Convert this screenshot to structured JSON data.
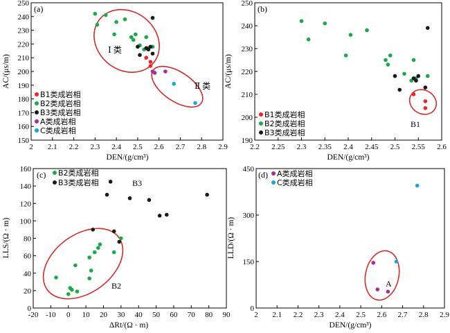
{
  "colors": {
    "B1": "#e8262b",
    "B2": "#1aaa4b",
    "B3": "#1a1a1a",
    "A": "#a0309a",
    "C": "#1ba6d8",
    "ellipse": "#d42a2a"
  },
  "chart_data": [
    {
      "type": "scatter",
      "panel": "(a)",
      "xlabel": "DEN/(g/cm³)",
      "ylabel": "AC/(μs/m)",
      "xlim": [
        2.0,
        2.9
      ],
      "ylim": [
        150,
        250
      ],
      "xticks": [
        "2",
        "2.1",
        "2.2",
        "2.3",
        "2.4",
        "2.5",
        "2.6",
        "2.7",
        "2.8",
        "2.9"
      ],
      "yticks": [
        "150",
        "160",
        "170",
        "180",
        "190",
        "200",
        "210",
        "220",
        "230",
        "240",
        "250"
      ],
      "legend": {
        "position": "bottom-left",
        "entries": [
          "B1类成岩相",
          "B2类成岩相",
          "B3类成岩相",
          "A类成岩相",
          "C类成岩相"
        ]
      },
      "series": [
        {
          "name": "B1类成岩相",
          "color_key": "B1",
          "points": [
            [
              2.54,
              210
            ],
            [
              2.56,
              207
            ],
            [
              2.56,
              204
            ]
          ]
        },
        {
          "name": "B2类成岩相",
          "color_key": "B2",
          "points": [
            [
              2.3,
              242
            ],
            [
              2.31,
              234
            ],
            [
              2.35,
              241
            ],
            [
              2.39,
              227
            ],
            [
              2.4,
              236
            ],
            [
              2.44,
              238
            ],
            [
              2.47,
              225
            ],
            [
              2.48,
              223
            ],
            [
              2.49,
              227
            ],
            [
              2.51,
              219
            ],
            [
              2.53,
              216
            ],
            [
              2.54,
              225
            ],
            [
              2.55,
              217
            ],
            [
              2.57,
              218
            ]
          ]
        },
        {
          "name": "B3类成岩相",
          "color_key": "B3",
          "points": [
            [
              2.5,
              218
            ],
            [
              2.51,
              212
            ],
            [
              2.54,
              217
            ],
            [
              2.55,
              216
            ],
            [
              2.56,
              218
            ],
            [
              2.57,
              213
            ],
            [
              2.57,
              239
            ]
          ]
        },
        {
          "name": "A类成岩相",
          "color_key": "A",
          "points": [
            [
              2.57,
              200
            ],
            [
              2.58,
              199
            ],
            [
              2.63,
              200
            ]
          ]
        },
        {
          "name": "C类成岩相",
          "color_key": "C",
          "points": [
            [
              2.67,
              191
            ],
            [
              2.77,
              177
            ]
          ]
        }
      ],
      "annotations": [
        "Ⅰ 类",
        "Ⅱ 类"
      ]
    },
    {
      "type": "scatter",
      "panel": "(b)",
      "xlabel": "DEN/(g/cm³)",
      "ylabel": "AC/(μs/m)",
      "xlim": [
        2.2,
        2.6
      ],
      "ylim": [
        190,
        250
      ],
      "xticks": [
        "2.2",
        "2.25",
        "2.3",
        "2.35",
        "2.4",
        "2.45",
        "2.5",
        "2.55",
        "2.6"
      ],
      "yticks": [
        "190",
        "200",
        "210",
        "220",
        "230",
        "240",
        "250"
      ],
      "legend": {
        "position": "bottom-left",
        "entries": [
          "B1类成岩相",
          "B2类成岩相",
          "B3类成岩相"
        ]
      },
      "series": [
        {
          "name": "B1类成岩相",
          "color_key": "B1",
          "points": [
            [
              2.54,
              210
            ],
            [
              2.565,
              207
            ],
            [
              2.565,
              204
            ]
          ]
        },
        {
          "name": "B2类成岩相",
          "color_key": "B2",
          "points": [
            [
              2.3,
              242
            ],
            [
              2.315,
              234
            ],
            [
              2.35,
              241
            ],
            [
              2.395,
              227
            ],
            [
              2.405,
              236
            ],
            [
              2.44,
              238
            ],
            [
              2.48,
              225
            ],
            [
              2.485,
              223
            ],
            [
              2.49,
              227
            ],
            [
              2.52,
              219
            ],
            [
              2.535,
              216
            ],
            [
              2.54,
              225
            ],
            [
              2.545,
              217
            ],
            [
              2.57,
              218
            ]
          ]
        },
        {
          "name": "B3类成岩相",
          "color_key": "B3",
          "points": [
            [
              2.5,
              218
            ],
            [
              2.51,
              212
            ],
            [
              2.54,
              217
            ],
            [
              2.545,
              216
            ],
            [
              2.55,
              218
            ],
            [
              2.565,
              213
            ],
            [
              2.57,
              239
            ]
          ]
        }
      ],
      "annotations": [
        "B1"
      ]
    },
    {
      "type": "scatter",
      "panel": "(c)",
      "xlabel": "ΔRt/(Ω · m)",
      "ylabel": "LLS/(Ω · m)",
      "xlim": [
        -20,
        90
      ],
      "ylim": [
        0,
        160
      ],
      "xticks": [
        "-20",
        "-10",
        "0",
        "10",
        "20",
        "30",
        "40",
        "50",
        "60",
        "70",
        "80",
        "90"
      ],
      "yticks": [
        "0",
        "20",
        "40",
        "60",
        "80",
        "100",
        "120",
        "140",
        "160"
      ],
      "legend": {
        "position": "top-left",
        "entries": [
          "B2类成岩相",
          "B3类成岩相"
        ]
      },
      "series": [
        {
          "name": "B2类成岩相",
          "color_key": "B2",
          "points": [
            [
              -7,
              35
            ],
            [
              0,
              16
            ],
            [
              1,
              23
            ],
            [
              2,
              21
            ],
            [
              4,
              49
            ],
            [
              5,
              19
            ],
            [
              12,
              34
            ],
            [
              12,
              58
            ],
            [
              13,
              43
            ],
            [
              15,
              64
            ],
            [
              17,
              69
            ],
            [
              18,
              73
            ],
            [
              26,
              64
            ],
            [
              30,
              80
            ]
          ]
        },
        {
          "name": "B3类成岩相",
          "color_key": "B3",
          "points": [
            [
              14,
              90
            ],
            [
              22,
              130
            ],
            [
              24,
              145
            ],
            [
              26,
              88
            ],
            [
              29,
              76
            ],
            [
              35,
              126
            ],
            [
              46,
              124
            ],
            [
              52,
              106
            ],
            [
              56,
              107
            ],
            [
              79,
              130
            ]
          ]
        }
      ],
      "annotations": [
        "B3",
        "B2"
      ]
    },
    {
      "type": "scatter",
      "panel": "(d)",
      "xlabel": "DEN/(g/cm³)",
      "ylabel": "LLD/(Ω · m)",
      "xlim": [
        2.0,
        2.9
      ],
      "ylim": [
        0,
        450
      ],
      "xticks": [
        "2",
        "2.1",
        "2.2",
        "2.3",
        "2.4",
        "2.5",
        "2.6",
        "2.7",
        "2.8",
        "2.9"
      ],
      "yticks": [
        "0",
        "150",
        "300",
        "450"
      ],
      "legend": {
        "position": "top-left",
        "entries": [
          "A类成岩相",
          "C类成岩相"
        ]
      },
      "series": [
        {
          "name": "A类成岩相",
          "color_key": "A",
          "points": [
            [
              2.56,
              146
            ],
            [
              2.58,
              60
            ],
            [
              2.63,
              53
            ]
          ]
        },
        {
          "name": "C类成岩相",
          "color_key": "C",
          "points": [
            [
              2.67,
              150
            ],
            [
              2.77,
              395
            ]
          ]
        }
      ],
      "annotations": [
        "A"
      ]
    }
  ]
}
